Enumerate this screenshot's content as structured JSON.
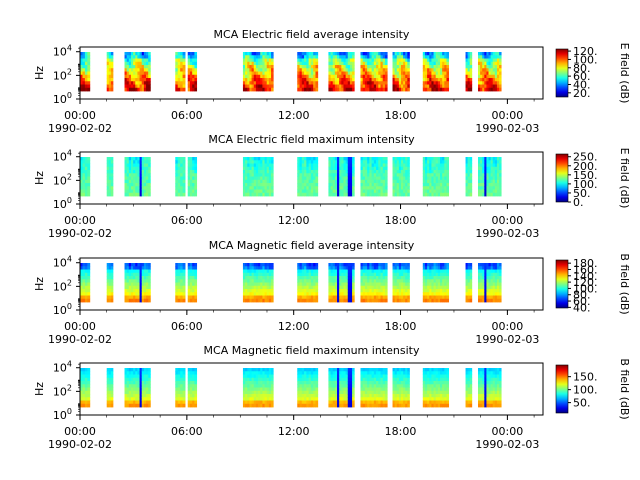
{
  "chart_data": [
    {
      "type": "heatmap",
      "title": "MCA  Electric field average intensity",
      "ylabel": "Hz",
      "yticks": [
        {
          "base": "10",
          "exp": "0"
        },
        {
          "base": "10",
          "exp": "2"
        },
        {
          "base": "10",
          "exp": "4"
        }
      ],
      "xticks": [
        "00:00",
        "06:00",
        "12:00",
        "18:00",
        "00:00"
      ],
      "date_start": "1990-02-02",
      "date_end": "1990-02-03",
      "colorbar_label": "E field (dB)",
      "colorbar_ticks": [
        "20.",
        "40.",
        "60.",
        "80.",
        "100.",
        "120."
      ],
      "colorbar_values": [
        20,
        40,
        60,
        80,
        100,
        120
      ],
      "colorbar_range": [
        10,
        125
      ],
      "profile": "avg-e"
    },
    {
      "type": "heatmap",
      "title": "MCA  Electric field maximum intensity",
      "ylabel": "Hz",
      "yticks": [
        {
          "base": "10",
          "exp": "0"
        },
        {
          "base": "10",
          "exp": "2"
        },
        {
          "base": "10",
          "exp": "4"
        }
      ],
      "xticks": [
        "00:00",
        "06:00",
        "12:00",
        "18:00",
        "00:00"
      ],
      "date_start": "1990-02-02",
      "date_end": "1990-02-03",
      "colorbar_label": "E field (dB)",
      "colorbar_ticks": [
        "0.",
        "50.",
        "100.",
        "150.",
        "200.",
        "250."
      ],
      "colorbar_values": [
        0,
        50,
        100,
        150,
        200,
        250
      ],
      "colorbar_range": [
        0,
        265
      ],
      "profile": "max-e"
    },
    {
      "type": "heatmap",
      "title": "MCA  Magnetic field average intensity",
      "ylabel": "Hz",
      "yticks": [
        {
          "base": "10",
          "exp": "0"
        },
        {
          "base": "10",
          "exp": "2"
        },
        {
          "base": "10",
          "exp": "4"
        }
      ],
      "xticks": [
        "00:00",
        "06:00",
        "12:00",
        "18:00",
        "00:00"
      ],
      "date_start": "1990-02-02",
      "date_end": "1990-02-03",
      "colorbar_label": "B field (dB)",
      "colorbar_ticks": [
        "40.",
        "60.",
        "80.",
        "100.",
        "120.",
        "140.",
        "160.",
        "180."
      ],
      "colorbar_values": [
        40,
        60,
        80,
        100,
        120,
        140,
        160,
        180
      ],
      "colorbar_range": [
        38,
        190
      ],
      "profile": "avg-b"
    },
    {
      "type": "heatmap",
      "title": "MCA  Magnetic field maximum intensity",
      "ylabel": "Hz",
      "yticks": [
        {
          "base": "10",
          "exp": "0"
        },
        {
          "base": "10",
          "exp": "2"
        },
        {
          "base": "10",
          "exp": "4"
        }
      ],
      "xticks": [
        "00:00",
        "06:00",
        "12:00",
        "18:00",
        "00:00"
      ],
      "date_start": "1990-02-02",
      "date_end": "1990-02-03",
      "colorbar_label": "B field (dB)",
      "colorbar_ticks": [
        "50.",
        "100.",
        "150."
      ],
      "colorbar_values": [
        50,
        100,
        150
      ],
      "colorbar_range": [
        10,
        195
      ],
      "profile": "max-b"
    }
  ],
  "data_intervals_hours": [
    [
      0.0,
      0.55
    ],
    [
      1.5,
      1.85
    ],
    [
      2.5,
      3.95
    ],
    [
      5.35,
      5.9
    ],
    [
      6.05,
      6.55
    ],
    [
      9.15,
      10.85
    ],
    [
      12.2,
      13.35
    ],
    [
      13.95,
      15.4
    ],
    [
      15.75,
      17.25
    ],
    [
      17.55,
      18.5
    ],
    [
      19.25,
      20.7
    ],
    [
      21.65,
      22.0
    ],
    [
      22.35,
      23.65
    ]
  ]
}
